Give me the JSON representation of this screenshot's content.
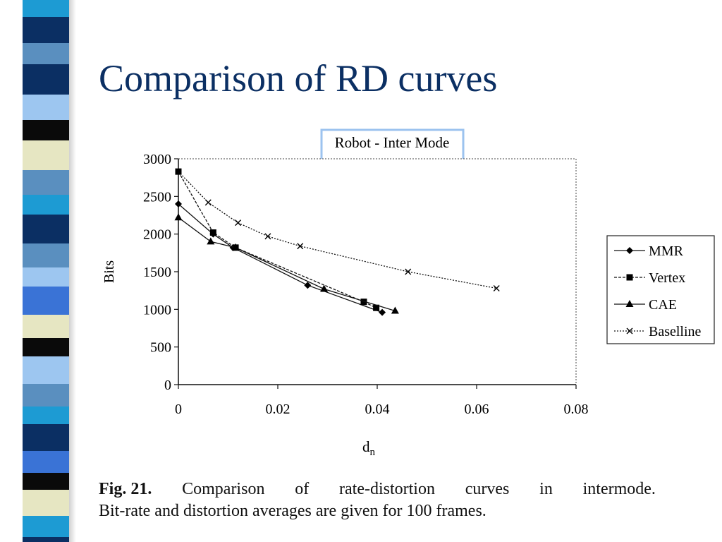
{
  "slide": {
    "title": "Comparison of RD curves"
  },
  "caption": {
    "label": "Fig. 21.",
    "words_line1": [
      "Comparison",
      "of",
      "rate-distortion",
      "curves",
      "in",
      "intermode."
    ],
    "line2": "Bit-rate and distortion averages are given for 100 frames."
  },
  "colors": {
    "title": "#0b2f63",
    "title_box_border": "#9cc3ef",
    "stripe": [
      "#0b2f63",
      "#5a8fbf",
      "#3a73d6",
      "#0a0a0a",
      "#e6e6c2",
      "#1d9bd3",
      "#9dc6f0"
    ]
  },
  "chart_data": {
    "type": "line",
    "title": "Robot - Inter Mode",
    "xlabel": "d",
    "xlabel_sub": "n",
    "ylabel": "Bits",
    "xlim": [
      0,
      0.08
    ],
    "ylim": [
      0,
      3000
    ],
    "xticks": [
      0,
      0.02,
      0.04,
      0.06,
      0.08
    ],
    "xtick_labels": [
      "0",
      "0.02",
      "0.04",
      "0.06",
      "0.08"
    ],
    "yticks": [
      0,
      500,
      1000,
      1500,
      2000,
      2500,
      3000
    ],
    "ytick_labels": [
      "0",
      "500",
      "1000",
      "1500",
      "2000",
      "2500",
      "3000"
    ],
    "grid": false,
    "legend_position": "right",
    "series": [
      {
        "name": "MMR",
        "marker": "diamond",
        "dash": "solid",
        "points": [
          [
            0,
            2400
          ],
          [
            0.007,
            2000
          ],
          [
            0.011,
            1820
          ],
          [
            0.026,
            1320
          ],
          [
            0.041,
            960
          ]
        ]
      },
      {
        "name": "Vertex",
        "marker": "square",
        "dash": "dashed",
        "points": [
          [
            0,
            2830
          ],
          [
            0.007,
            2020
          ],
          [
            0.0115,
            1820
          ],
          [
            0.0373,
            1100
          ],
          [
            0.0398,
            1020
          ]
        ]
      },
      {
        "name": "CAE",
        "marker": "triangle",
        "dash": "solid",
        "points": [
          [
            0,
            2220
          ],
          [
            0.0065,
            1900
          ],
          [
            0.0115,
            1820
          ],
          [
            0.0293,
            1270
          ],
          [
            0.0436,
            980
          ]
        ]
      },
      {
        "name": "Baselline",
        "marker": "x",
        "dash": "dotted",
        "points": [
          [
            0,
            2830
          ],
          [
            0.006,
            2420
          ],
          [
            0.012,
            2150
          ],
          [
            0.018,
            1970
          ],
          [
            0.0245,
            1840
          ],
          [
            0.0462,
            1500
          ],
          [
            0.064,
            1280
          ]
        ]
      }
    ]
  }
}
